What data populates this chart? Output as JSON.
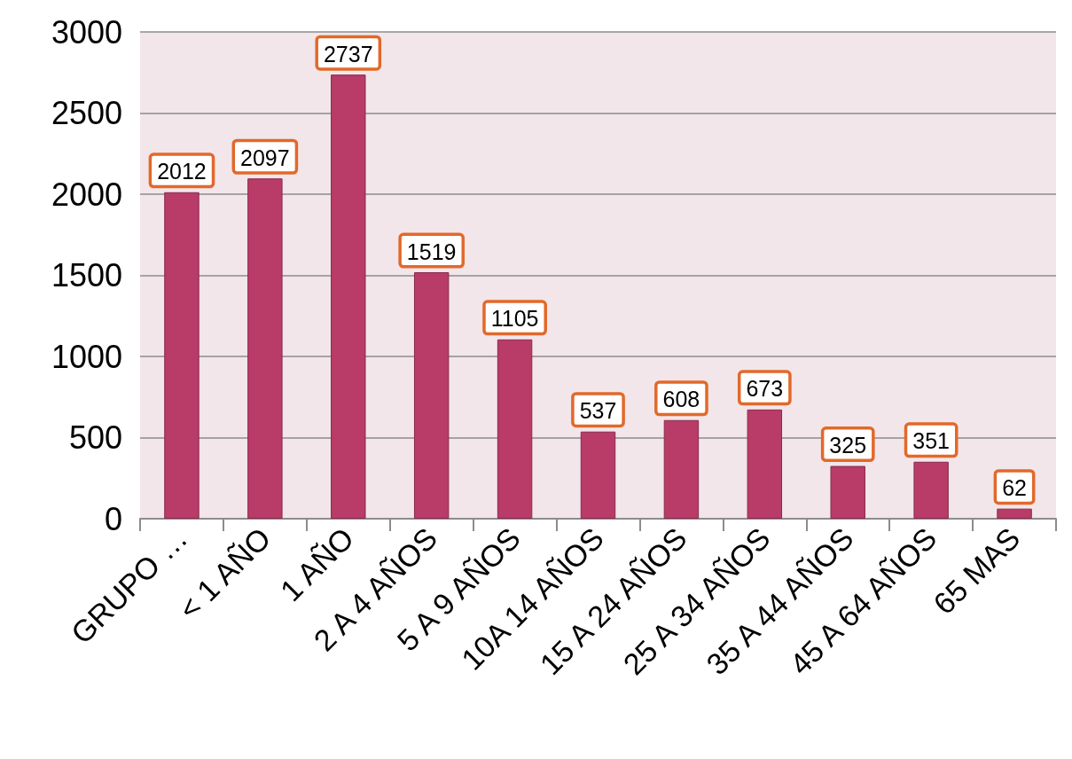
{
  "chart_data": {
    "type": "bar",
    "categories": [
      "GRUPO …",
      "< 1 AÑO",
      "1 AÑO",
      "2 A 4 AÑOS",
      "5 A 9 AÑOS",
      "10A 14 AÑOS",
      "15 A 24 AÑOS",
      "25 A 34 AÑOS",
      "35 A 44 AÑOS",
      "45 A 64 AÑOS",
      "65 MAS"
    ],
    "values": [
      2012,
      2097,
      2737,
      1519,
      1105,
      537,
      608,
      673,
      325,
      351,
      62
    ],
    "color": "#b83b68",
    "ylim": [
      0,
      3000
    ],
    "yticks": [
      0,
      500,
      1000,
      1500,
      2000,
      2500,
      3000
    ],
    "grid": "y",
    "data_labels": true
  }
}
